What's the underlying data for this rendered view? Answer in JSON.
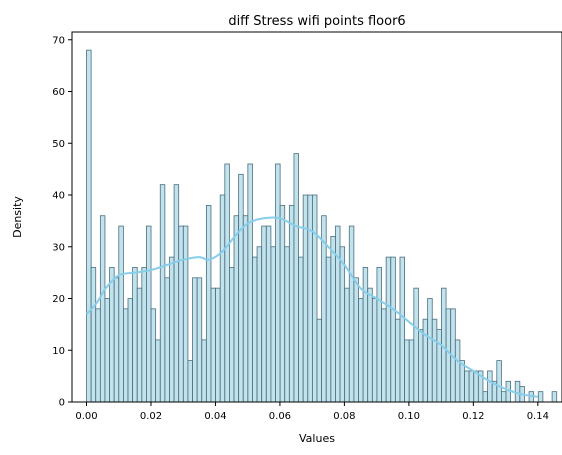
{
  "chart_data": {
    "type": "bar",
    "title": "diff Stress wifi points floor6",
    "xlabel": "Values",
    "ylabel": "Density",
    "xlim": [
      -0.0045,
      0.1475
    ],
    "ylim": [
      0,
      71.5
    ],
    "xticks": [
      0.0,
      0.02,
      0.04,
      0.06,
      0.08,
      0.1,
      0.12,
      0.14
    ],
    "yticks": [
      0,
      10,
      20,
      30,
      40,
      50,
      60,
      70
    ],
    "grid": false,
    "bin_start": 0.0,
    "bin_width": 0.00143,
    "values": [
      68,
      26,
      18,
      36,
      20,
      26,
      24,
      34,
      18,
      20,
      26,
      22,
      26,
      34,
      18,
      12,
      42,
      24,
      28,
      42,
      34,
      34,
      8,
      24,
      24,
      12,
      38,
      22,
      22,
      40,
      46,
      26,
      36,
      44,
      36,
      46,
      28,
      30,
      34,
      34,
      30,
      46,
      38,
      30,
      38,
      48,
      28,
      40,
      40,
      40,
      16,
      36,
      28,
      32,
      34,
      30,
      22,
      34,
      24,
      20,
      26,
      22,
      20,
      26,
      18,
      28,
      28,
      16,
      28,
      12,
      12,
      22,
      14,
      16,
      20,
      16,
      14,
      22,
      18,
      18,
      12,
      8,
      6,
      6,
      6,
      6,
      2,
      6,
      4,
      8,
      2,
      4,
      0,
      4,
      3,
      0,
      2,
      0,
      2,
      0,
      0,
      2
    ],
    "kde": [
      [
        0.0,
        17
      ],
      [
        0.003,
        19
      ],
      [
        0.006,
        22
      ],
      [
        0.01,
        24.5
      ],
      [
        0.015,
        25
      ],
      [
        0.02,
        25.5
      ],
      [
        0.025,
        26.5
      ],
      [
        0.03,
        27.5
      ],
      [
        0.035,
        28
      ],
      [
        0.038,
        27.5
      ],
      [
        0.042,
        29
      ],
      [
        0.046,
        32
      ],
      [
        0.05,
        34.5
      ],
      [
        0.055,
        35.5
      ],
      [
        0.06,
        35.5
      ],
      [
        0.065,
        34
      ],
      [
        0.07,
        33
      ],
      [
        0.075,
        30
      ],
      [
        0.08,
        26.5
      ],
      [
        0.085,
        22
      ],
      [
        0.09,
        20
      ],
      [
        0.095,
        18
      ],
      [
        0.1,
        15.5
      ],
      [
        0.105,
        13
      ],
      [
        0.11,
        11
      ],
      [
        0.115,
        8
      ],
      [
        0.12,
        6
      ],
      [
        0.125,
        4
      ],
      [
        0.13,
        2.5
      ],
      [
        0.135,
        1.5
      ],
      [
        0.14,
        1
      ]
    ],
    "colors": {
      "bar_fill": "#add8e6",
      "bar_edge": "#4a6f80",
      "kde": "#87ceeb"
    }
  }
}
